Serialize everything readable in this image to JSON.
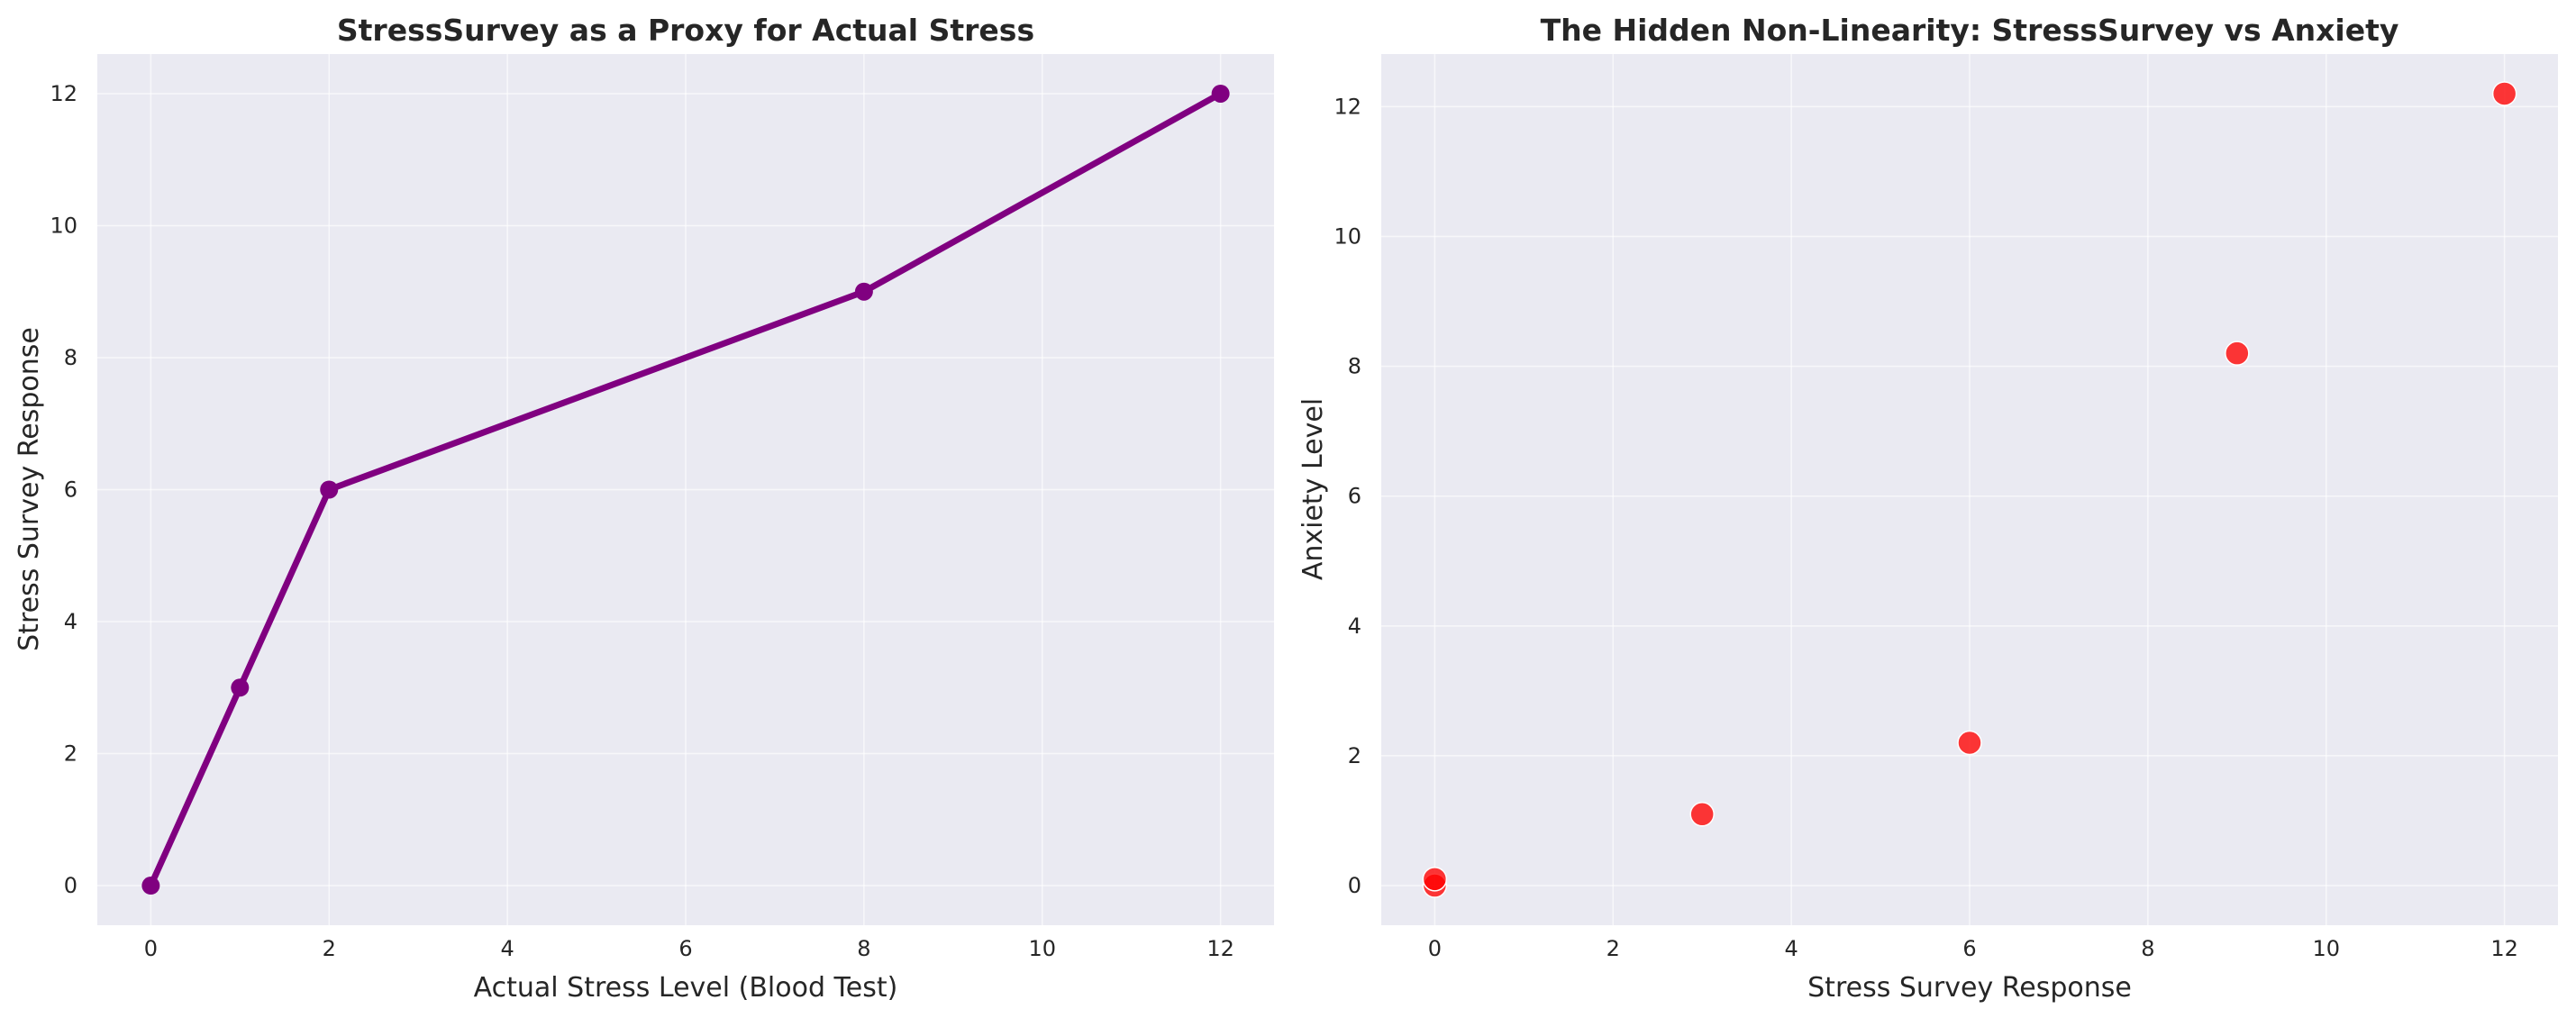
{
  "chart_data": [
    {
      "type": "line",
      "title": "StressSurvey as a Proxy for Actual Stress",
      "xlabel": "Actual Stress Level (Blood Test)",
      "ylabel": "Stress Survey Response",
      "x": [
        0,
        1,
        2,
        8,
        12
      ],
      "series": [
        {
          "values": [
            0,
            3,
            6,
            9,
            12
          ],
          "color": "#800080"
        }
      ],
      "xlim": [
        -0.6,
        12.6
      ],
      "ylim": [
        -0.6,
        12.6
      ],
      "xticks": [
        0,
        2,
        4,
        6,
        8,
        10,
        12
      ],
      "yticks": [
        0,
        2,
        4,
        6,
        8,
        10,
        12
      ],
      "xtick_labels": [
        "0",
        "2",
        "4",
        "6",
        "8",
        "10",
        "12"
      ],
      "ytick_labels": [
        "0",
        "2",
        "4",
        "6",
        "8",
        "10",
        "12"
      ],
      "grid": true,
      "marker": "circle"
    },
    {
      "type": "scatter",
      "title": "The Hidden Non-Linearity: StressSurvey vs Anxiety",
      "xlabel": "Stress Survey Response",
      "ylabel": "Anxiety Level",
      "series": [
        {
          "points": [
            {
              "x": 0,
              "y": 0.0
            },
            {
              "x": 0,
              "y": 0.1
            },
            {
              "x": 3,
              "y": 1.1
            },
            {
              "x": 6,
              "y": 2.2
            },
            {
              "x": 9,
              "y": 8.2
            },
            {
              "x": 12,
              "y": 12.2
            }
          ],
          "color": "#ff0000"
        }
      ],
      "xlim": [
        -0.6,
        12.6
      ],
      "ylim": [
        -0.61,
        12.81
      ],
      "xticks": [
        0,
        2,
        4,
        6,
        8,
        10,
        12
      ],
      "yticks": [
        0,
        2,
        4,
        6,
        8,
        10,
        12
      ],
      "xtick_labels": [
        "0",
        "2",
        "4",
        "6",
        "8",
        "10",
        "12"
      ],
      "ytick_labels": [
        "0",
        "2",
        "4",
        "6",
        "8",
        "10",
        "12"
      ],
      "grid": true
    }
  ],
  "colors": {
    "plot_background": "#eaeaf2",
    "grid": "#ffffff",
    "text": "#262626",
    "line_series": "#800080",
    "scatter_points": "#ff0000"
  }
}
